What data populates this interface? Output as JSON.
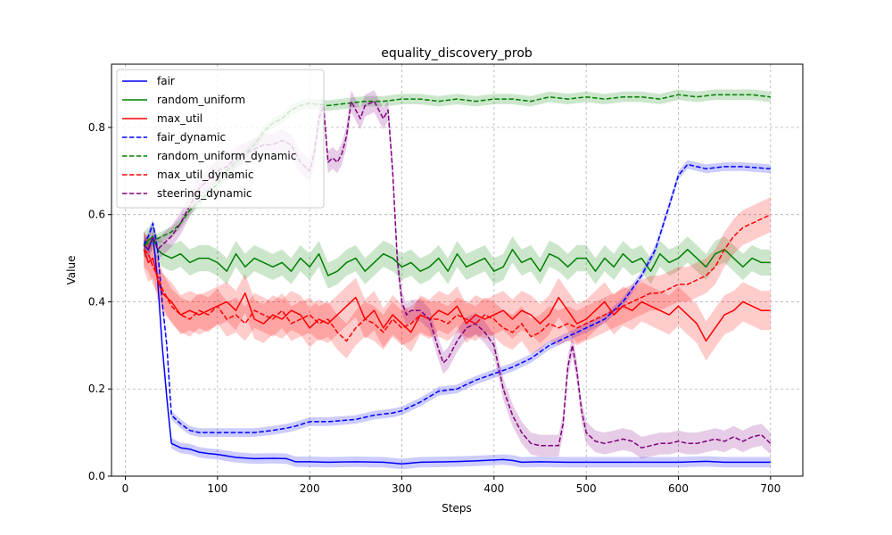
{
  "chart_data": {
    "type": "line",
    "title": "equality_discovery_prob",
    "xlabel": "Steps",
    "ylabel": "Value",
    "xlim": [
      -15,
      735
    ],
    "ylim": [
      0.0,
      0.945
    ],
    "xticks": [
      0,
      100,
      200,
      300,
      400,
      500,
      600,
      700
    ],
    "yticks": [
      0.0,
      0.2,
      0.4,
      0.6,
      0.8
    ],
    "ytick_labels": [
      "0.0",
      "0.2",
      "0.4",
      "0.6",
      "0.8"
    ],
    "grid": true,
    "legend_position": "top-left",
    "series": [
      {
        "name": "fair",
        "color": "#0000ff",
        "dash": "solid",
        "x": [
          20,
          25,
          30,
          35,
          40,
          45,
          50,
          60,
          70,
          80,
          90,
          100,
          120,
          140,
          160,
          175,
          185,
          200,
          220,
          250,
          280,
          300,
          320,
          350,
          380,
          410,
          420,
          430,
          450,
          480,
          500,
          550,
          600,
          630,
          650,
          700
        ],
        "y": [
          0.53,
          0.52,
          0.55,
          0.45,
          0.3,
          0.18,
          0.075,
          0.065,
          0.062,
          0.055,
          0.052,
          0.05,
          0.043,
          0.04,
          0.041,
          0.04,
          0.033,
          0.033,
          0.032,
          0.033,
          0.032,
          0.028,
          0.032,
          0.033,
          0.035,
          0.038,
          0.036,
          0.032,
          0.033,
          0.032,
          0.032,
          0.032,
          0.032,
          0.034,
          0.032,
          0.032
        ],
        "band": 0.012
      },
      {
        "name": "random_uniform",
        "color": "#008000",
        "dash": "solid",
        "x": [
          20,
          25,
          30,
          35,
          40,
          50,
          60,
          70,
          80,
          90,
          100,
          110,
          120,
          130,
          140,
          150,
          160,
          170,
          180,
          190,
          200,
          210,
          220,
          230,
          240,
          250,
          260,
          270,
          280,
          290,
          300,
          310,
          320,
          330,
          340,
          350,
          360,
          370,
          380,
          390,
          400,
          410,
          420,
          430,
          440,
          450,
          460,
          470,
          480,
          490,
          500,
          510,
          520,
          530,
          540,
          550,
          560,
          570,
          580,
          590,
          600,
          610,
          620,
          630,
          640,
          650,
          660,
          670,
          680,
          690,
          700
        ],
        "y": [
          0.53,
          0.54,
          0.55,
          0.52,
          0.51,
          0.5,
          0.51,
          0.49,
          0.5,
          0.5,
          0.49,
          0.47,
          0.51,
          0.48,
          0.5,
          0.49,
          0.48,
          0.49,
          0.47,
          0.5,
          0.48,
          0.51,
          0.46,
          0.47,
          0.49,
          0.5,
          0.47,
          0.49,
          0.51,
          0.5,
          0.48,
          0.49,
          0.47,
          0.48,
          0.5,
          0.47,
          0.51,
          0.48,
          0.49,
          0.5,
          0.47,
          0.48,
          0.52,
          0.49,
          0.5,
          0.47,
          0.51,
          0.5,
          0.48,
          0.5,
          0.5,
          0.47,
          0.5,
          0.48,
          0.51,
          0.49,
          0.5,
          0.47,
          0.51,
          0.49,
          0.5,
          0.52,
          0.5,
          0.48,
          0.51,
          0.52,
          0.5,
          0.48,
          0.5,
          0.49,
          0.49
        ],
        "band": 0.03
      },
      {
        "name": "max_util",
        "color": "#ff0000",
        "dash": "solid",
        "x": [
          20,
          25,
          30,
          35,
          40,
          50,
          60,
          70,
          80,
          90,
          100,
          110,
          120,
          130,
          140,
          150,
          160,
          170,
          180,
          190,
          200,
          210,
          220,
          230,
          240,
          250,
          260,
          270,
          280,
          290,
          300,
          310,
          320,
          330,
          340,
          350,
          360,
          370,
          380,
          390,
          400,
          410,
          420,
          430,
          440,
          450,
          460,
          470,
          480,
          490,
          500,
          510,
          520,
          530,
          540,
          550,
          560,
          570,
          580,
          590,
          600,
          610,
          620,
          630,
          640,
          650,
          660,
          670,
          680,
          690,
          700
        ],
        "y": [
          0.52,
          0.49,
          0.5,
          0.45,
          0.42,
          0.4,
          0.37,
          0.38,
          0.37,
          0.38,
          0.39,
          0.4,
          0.38,
          0.42,
          0.36,
          0.35,
          0.37,
          0.36,
          0.38,
          0.37,
          0.34,
          0.36,
          0.35,
          0.37,
          0.39,
          0.41,
          0.36,
          0.38,
          0.34,
          0.37,
          0.35,
          0.33,
          0.37,
          0.36,
          0.38,
          0.37,
          0.39,
          0.35,
          0.37,
          0.36,
          0.37,
          0.38,
          0.36,
          0.38,
          0.37,
          0.35,
          0.37,
          0.41,
          0.38,
          0.35,
          0.36,
          0.38,
          0.4,
          0.37,
          0.39,
          0.38,
          0.4,
          0.39,
          0.38,
          0.37,
          0.39,
          0.37,
          0.35,
          0.31,
          0.34,
          0.37,
          0.38,
          0.4,
          0.39,
          0.38,
          0.38
        ],
        "band": 0.045
      },
      {
        "name": "fair_dynamic",
        "color": "#0000ff",
        "dash": "dashed",
        "x": [
          20,
          25,
          30,
          35,
          40,
          45,
          50,
          60,
          70,
          80,
          90,
          100,
          120,
          140,
          160,
          175,
          185,
          200,
          220,
          250,
          270,
          290,
          300,
          320,
          340,
          360,
          380,
          400,
          420,
          440,
          460,
          480,
          500,
          520,
          540,
          560,
          575,
          590,
          600,
          610,
          630,
          650,
          670,
          700
        ],
        "y": [
          0.53,
          0.55,
          0.58,
          0.52,
          0.4,
          0.3,
          0.14,
          0.12,
          0.105,
          0.1,
          0.1,
          0.1,
          0.1,
          0.1,
          0.105,
          0.11,
          0.115,
          0.125,
          0.125,
          0.13,
          0.14,
          0.145,
          0.15,
          0.17,
          0.195,
          0.2,
          0.22,
          0.235,
          0.25,
          0.27,
          0.3,
          0.32,
          0.34,
          0.36,
          0.4,
          0.46,
          0.52,
          0.62,
          0.69,
          0.715,
          0.705,
          0.71,
          0.71,
          0.705
        ],
        "band": 0.01
      },
      {
        "name": "random_uniform_dynamic",
        "color": "#008000",
        "dash": "dashed",
        "x": [
          20,
          30,
          40,
          50,
          60,
          70,
          80,
          90,
          100,
          110,
          120,
          130,
          140,
          150,
          160,
          170,
          180,
          190,
          200,
          220,
          240,
          260,
          280,
          300,
          320,
          340,
          360,
          380,
          400,
          420,
          440,
          460,
          480,
          500,
          520,
          540,
          560,
          580,
          600,
          620,
          640,
          660,
          680,
          700
        ],
        "y": [
          0.53,
          0.54,
          0.55,
          0.56,
          0.58,
          0.61,
          0.63,
          0.65,
          0.67,
          0.7,
          0.72,
          0.74,
          0.76,
          0.79,
          0.81,
          0.82,
          0.84,
          0.85,
          0.855,
          0.85,
          0.855,
          0.86,
          0.86,
          0.865,
          0.865,
          0.86,
          0.865,
          0.86,
          0.865,
          0.865,
          0.86,
          0.87,
          0.865,
          0.87,
          0.865,
          0.87,
          0.87,
          0.865,
          0.875,
          0.87,
          0.875,
          0.875,
          0.875,
          0.87
        ],
        "band": 0.012
      },
      {
        "name": "max_util_dynamic",
        "color": "#ff0000",
        "dash": "dashed",
        "x": [
          20,
          25,
          30,
          35,
          40,
          50,
          60,
          70,
          80,
          90,
          100,
          110,
          120,
          130,
          140,
          150,
          160,
          170,
          180,
          190,
          200,
          210,
          220,
          230,
          240,
          250,
          260,
          270,
          280,
          290,
          300,
          310,
          320,
          330,
          340,
          350,
          360,
          370,
          380,
          390,
          400,
          410,
          420,
          430,
          440,
          450,
          460,
          470,
          480,
          490,
          500,
          510,
          520,
          530,
          540,
          550,
          560,
          570,
          580,
          590,
          600,
          610,
          620,
          630,
          640,
          650,
          660,
          670,
          680,
          690,
          700
        ],
        "y": [
          0.52,
          0.51,
          0.48,
          0.46,
          0.43,
          0.39,
          0.37,
          0.36,
          0.38,
          0.37,
          0.39,
          0.36,
          0.37,
          0.35,
          0.38,
          0.37,
          0.36,
          0.38,
          0.35,
          0.36,
          0.37,
          0.35,
          0.36,
          0.33,
          0.31,
          0.34,
          0.36,
          0.35,
          0.33,
          0.36,
          0.34,
          0.35,
          0.37,
          0.36,
          0.36,
          0.35,
          0.37,
          0.36,
          0.35,
          0.37,
          0.36,
          0.34,
          0.33,
          0.35,
          0.32,
          0.33,
          0.35,
          0.34,
          0.35,
          0.34,
          0.35,
          0.36,
          0.37,
          0.38,
          0.39,
          0.4,
          0.41,
          0.42,
          0.42,
          0.43,
          0.44,
          0.44,
          0.45,
          0.46,
          0.48,
          0.52,
          0.55,
          0.57,
          0.58,
          0.59,
          0.6
        ],
        "band": 0.04
      },
      {
        "name": "steering_dynamic",
        "color": "#800080",
        "dash": "dashed",
        "x": [
          20,
          25,
          30,
          35,
          40,
          50,
          60,
          70,
          80,
          90,
          100,
          110,
          120,
          130,
          140,
          150,
          160,
          170,
          180,
          190,
          200,
          205,
          210,
          215,
          220,
          225,
          230,
          235,
          240,
          245,
          250,
          255,
          260,
          270,
          280,
          285,
          290,
          295,
          300,
          305,
          310,
          320,
          330,
          340,
          345,
          350,
          360,
          370,
          380,
          390,
          400,
          410,
          420,
          430,
          440,
          450,
          460,
          470,
          475,
          480,
          485,
          490,
          495,
          500,
          510,
          520,
          530,
          540,
          550,
          560,
          570,
          580,
          590,
          600,
          610,
          620,
          630,
          640,
          650,
          660,
          670,
          680,
          690,
          700
        ],
        "y": [
          0.53,
          0.52,
          0.55,
          0.52,
          0.53,
          0.55,
          0.58,
          0.62,
          0.66,
          0.68,
          0.7,
          0.71,
          0.73,
          0.74,
          0.75,
          0.76,
          0.76,
          0.77,
          0.76,
          0.72,
          0.7,
          0.74,
          0.82,
          0.85,
          0.72,
          0.73,
          0.72,
          0.74,
          0.78,
          0.86,
          0.84,
          0.82,
          0.85,
          0.86,
          0.82,
          0.84,
          0.7,
          0.5,
          0.4,
          0.37,
          0.38,
          0.38,
          0.36,
          0.29,
          0.26,
          0.27,
          0.31,
          0.34,
          0.35,
          0.33,
          0.3,
          0.2,
          0.14,
          0.1,
          0.075,
          0.07,
          0.07,
          0.07,
          0.12,
          0.25,
          0.3,
          0.24,
          0.15,
          0.1,
          0.08,
          0.075,
          0.08,
          0.085,
          0.08,
          0.065,
          0.07,
          0.075,
          0.075,
          0.08,
          0.075,
          0.075,
          0.08,
          0.085,
          0.08,
          0.09,
          0.08,
          0.09,
          0.095,
          0.075
        ],
        "band": 0.025
      }
    ]
  }
}
